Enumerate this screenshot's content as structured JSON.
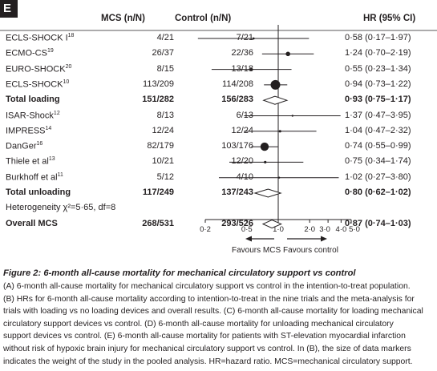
{
  "panel": "E",
  "headers": {
    "mcs": "MCS (n/N)",
    "control": "Control (n/N)",
    "hr": "HR (95% CI)"
  },
  "rows": [
    {
      "label": "ECLS-SHOCK I",
      "sup": "18",
      "mcs": "4/21",
      "control": "7/21",
      "hr_text": "0·58 (0·17–1·97)",
      "hr": 0.58,
      "lo": 0.17,
      "hi": 1.97,
      "bold": false,
      "kind": "study",
      "size": 1.4
    },
    {
      "label": "ECMO-CS",
      "sup": "19",
      "mcs": "26/37",
      "control": "22/36",
      "hr_text": "1·24 (0·70–2·19)",
      "hr": 1.24,
      "lo": 0.7,
      "hi": 2.19,
      "bold": false,
      "kind": "study",
      "size": 2.8
    },
    {
      "label": "EURO-SHOCK",
      "sup": "20",
      "mcs": "8/15",
      "control": "13/18",
      "hr_text": "0·55 (0·23–1·34)",
      "hr": 0.55,
      "lo": 0.23,
      "hi": 1.34,
      "bold": false,
      "kind": "study",
      "size": 1.6
    },
    {
      "label": "ECLS-SHOCK",
      "sup": "10",
      "mcs": "113/209",
      "control": "114/208",
      "hr_text": "0·94 (0·73–1·22)",
      "hr": 0.94,
      "lo": 0.73,
      "hi": 1.22,
      "bold": false,
      "kind": "study",
      "size": 6
    },
    {
      "label": "Total loading",
      "sup": "",
      "mcs": "151/282",
      "control": "156/283",
      "hr_text": "0·93 (0·75–1·17)",
      "hr": 0.93,
      "lo": 0.75,
      "hi": 1.17,
      "bold": true,
      "kind": "diamond"
    },
    {
      "label": "ISAR-Shock",
      "sup": "12",
      "mcs": "8/13",
      "control": "6/13",
      "hr_text": "1·37 (0·47–3·95)",
      "hr": 1.37,
      "lo": 0.47,
      "hi": 3.95,
      "bold": false,
      "kind": "study",
      "size": 1.2
    },
    {
      "label": "IMPRESS",
      "sup": "14",
      "mcs": "12/24",
      "control": "12/24",
      "hr_text": "1·04 (0·47–2·32)",
      "hr": 1.04,
      "lo": 0.47,
      "hi": 2.32,
      "bold": false,
      "kind": "study",
      "size": 1.6
    },
    {
      "label": "DanGer",
      "sup": "16",
      "mcs": "82/179",
      "control": "103/176",
      "hr_text": "0·74 (0·55–0·99)",
      "hr": 0.74,
      "lo": 0.55,
      "hi": 0.99,
      "bold": false,
      "kind": "study",
      "size": 5.2
    },
    {
      "label": "Thiele et al",
      "sup": "13",
      "mcs": "10/21",
      "control": "12/20",
      "hr_text": "0·75 (0·34–1·74)",
      "hr": 0.75,
      "lo": 0.34,
      "hi": 1.74,
      "bold": false,
      "kind": "study",
      "size": 1.6
    },
    {
      "label": "Burkhoff et al",
      "sup": "11",
      "mcs": "5/12",
      "control": "4/10",
      "hr_text": "1·02 (0·27–3·80)",
      "hr": 1.02,
      "lo": 0.27,
      "hi": 3.8,
      "bold": false,
      "kind": "study",
      "size": 1.2
    },
    {
      "label": "Total unloading",
      "sup": "",
      "mcs": "117/249",
      "control": "137/243",
      "hr_text": "0·80 (0·62–1·02)",
      "hr": 0.8,
      "lo": 0.62,
      "hi": 1.02,
      "bold": true,
      "kind": "diamond"
    },
    {
      "label": "Heterogeneity χ²=5·65, df=8",
      "sup": "",
      "mcs": "",
      "control": "",
      "hr_text": "",
      "bold": false,
      "kind": "text"
    },
    {
      "label": "Overall MCS",
      "sup": "",
      "mcs": "268/531",
      "control": "293/526",
      "hr_text": "0·87 (0·74–1·03)",
      "hr": 0.87,
      "lo": 0.74,
      "hi": 1.03,
      "bold": true,
      "kind": "diamond"
    }
  ],
  "chart_data": {
    "type": "forest",
    "x_scale": "log",
    "xlim": [
      0.2,
      5.0
    ],
    "reference_line": 1.0,
    "ticks": [
      {
        "value": 0.2,
        "label": "0·2"
      },
      {
        "value": 0.5,
        "label": "0·5"
      },
      {
        "value": 1.0,
        "label": "1·0"
      },
      {
        "value": 2.0,
        "label": "2·0"
      },
      {
        "value": 3.0,
        "label": "3·0"
      },
      {
        "value": 4.0,
        "label": "4·0"
      },
      {
        "value": 5.0,
        "label": "5·0"
      }
    ],
    "favours_left": "Favours MCS",
    "favours_right": "Favours control"
  },
  "caption": {
    "title": "Figure 2: 6-month all-cause mortality for mechanical circulatory support vs control",
    "lines": [
      "(A) 6-month all-cause mortality for mechanical circulatory support vs control in the intention-to-treat population.",
      "(B) HRs for 6-month all-cause mortality according to intention-to-treat in the nine trials and the meta-analysis for",
      "trials with loading vs no loading devices and overall results. (C) 6-month all-cause mortality for loading mechanical",
      "circulatory support devices vs control. (D) 6-month all-cause mortality for unloading mechanical circulatory",
      "support devices vs control. (E) 6-month all-cause mortality for patients with ST-elevation myocardial infarction",
      "without risk of hypoxic brain injury for mechanical circulatory support vs control. In (B), the size of data markers",
      "indicates the weight of the study in the pooled analysis. HR=hazard ratio. MCS=mechanical circulatory support."
    ]
  },
  "colors": {
    "ink": "#231f20",
    "background": "#ffffff"
  }
}
